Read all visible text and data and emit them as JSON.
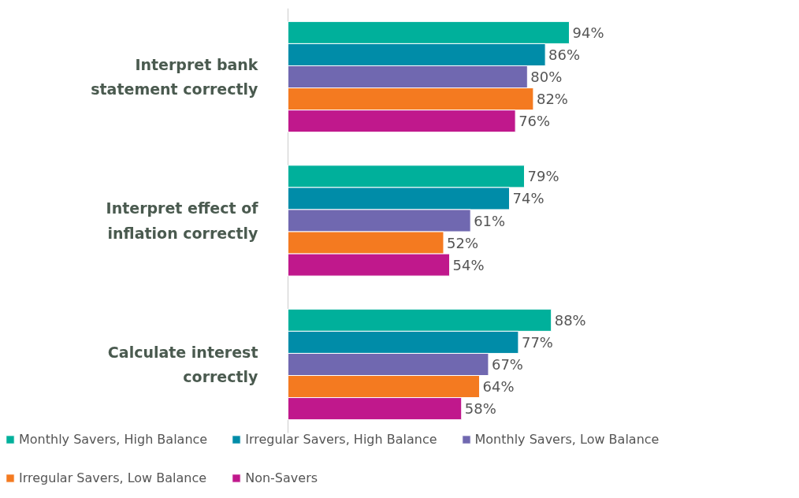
{
  "chart_data": {
    "type": "bar",
    "orientation": "horizontal",
    "categories": [
      "Interpret bank statement correctly",
      "Interpret effect of inflation correctly",
      "Calculate interest correctly"
    ],
    "series": [
      {
        "name": "Monthly Savers, High Balance",
        "color": "#00b09b",
        "values": [
          94,
          79,
          88
        ],
        "value_labels": [
          "94%",
          "79%",
          "88%"
        ]
      },
      {
        "name": "Irregular Savers, High Balance",
        "color": "#008ca8",
        "values": [
          86,
          74,
          77
        ],
        "value_labels": [
          "86%",
          "74%",
          "77%"
        ]
      },
      {
        "name": "Monthly Savers, Low Balance",
        "color": "#7068b0",
        "values": [
          80,
          61,
          67
        ],
        "value_labels": [
          "80%",
          "61%",
          "67%"
        ]
      },
      {
        "name": "Irregular Savers, Low Balance",
        "color": "#f47a20",
        "values": [
          82,
          52,
          64
        ],
        "value_labels": [
          "82%",
          "52%",
          "64%"
        ]
      },
      {
        "name": "Non-Savers",
        "color": "#c0188c",
        "values": [
          76,
          54,
          58
        ],
        "value_labels": [
          "76%",
          "54%",
          "58%"
        ]
      }
    ],
    "tick_labels": "y",
    "grid": false,
    "legend": "bottom"
  }
}
